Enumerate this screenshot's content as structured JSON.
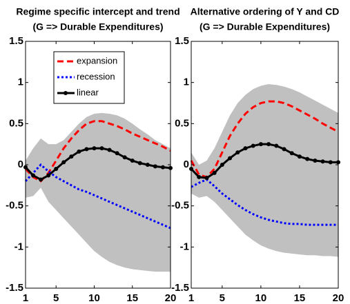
{
  "chart_data": [
    {
      "type": "line",
      "title": "Regime specific intercept and trend",
      "subtitle": "(G => Durable Expenditures)",
      "x": [
        1,
        2,
        3,
        4,
        5,
        6,
        7,
        8,
        9,
        10,
        11,
        12,
        13,
        14,
        15,
        16,
        17,
        18,
        19,
        20
      ],
      "xlim": [
        1,
        20
      ],
      "xticks": [
        1,
        5,
        10,
        15,
        20
      ],
      "ylim": [
        -1.5,
        1.5
      ],
      "yticks": [
        -1.5,
        -1,
        -0.5,
        0,
        0.5,
        1,
        1.5
      ],
      "legend": "upper center",
      "band": {
        "color": "#c0c0c0",
        "upper": [
          0.05,
          0.2,
          0.32,
          0.25,
          0.25,
          0.3,
          0.4,
          0.5,
          0.58,
          0.62,
          0.63,
          0.62,
          0.6,
          0.56,
          0.5,
          0.43,
          0.37,
          0.3,
          0.25,
          0.2
        ],
        "lower": [
          -0.4,
          -0.38,
          -0.28,
          -0.45,
          -0.55,
          -0.65,
          -0.75,
          -0.85,
          -0.95,
          -1.05,
          -1.12,
          -1.18,
          -1.22,
          -1.25,
          -1.27,
          -1.28,
          -1.29,
          -1.3,
          -1.3,
          -1.3
        ]
      },
      "series": [
        {
          "name": "expansion",
          "color": "#ff0000",
          "style": "dashed",
          "marker": false,
          "values": [
            -0.05,
            -0.15,
            -0.2,
            -0.1,
            0.05,
            0.2,
            0.32,
            0.42,
            0.5,
            0.53,
            0.53,
            0.5,
            0.47,
            0.43,
            0.38,
            0.34,
            0.3,
            0.26,
            0.22,
            0.17
          ]
        },
        {
          "name": "recession",
          "color": "#0000ff",
          "style": "dotted",
          "marker": false,
          "values": [
            -0.2,
            -0.1,
            0.0,
            -0.08,
            -0.15,
            -0.2,
            -0.25,
            -0.3,
            -0.33,
            -0.37,
            -0.41,
            -0.45,
            -0.49,
            -0.53,
            -0.57,
            -0.61,
            -0.65,
            -0.69,
            -0.73,
            -0.77
          ]
        },
        {
          "name": "linear",
          "color": "#000000",
          "style": "solid",
          "marker": true,
          "values": [
            -0.03,
            -0.13,
            -0.18,
            -0.13,
            -0.05,
            0.03,
            0.1,
            0.16,
            0.19,
            0.2,
            0.2,
            0.18,
            0.14,
            0.09,
            0.05,
            0.02,
            0.0,
            -0.02,
            -0.03,
            -0.04
          ]
        }
      ]
    },
    {
      "type": "line",
      "title": "Alternative ordering of Y and CD",
      "subtitle": "(G => Durable Expenditures)",
      "x": [
        1,
        2,
        3,
        4,
        5,
        6,
        7,
        8,
        9,
        10,
        11,
        12,
        13,
        14,
        15,
        16,
        17,
        18,
        19,
        20
      ],
      "xlim": [
        1,
        20
      ],
      "xticks": [
        1,
        5,
        10,
        15,
        20
      ],
      "ylim": [
        -1.5,
        1.5
      ],
      "yticks": [
        -1.5,
        -1,
        -0.5,
        0,
        0.5,
        1,
        1.5
      ],
      "band": {
        "color": "#c0c0c0",
        "upper": [
          0.15,
          0.0,
          0.05,
          0.2,
          0.4,
          0.6,
          0.75,
          0.85,
          0.92,
          0.96,
          0.98,
          0.97,
          0.95,
          0.92,
          0.88,
          0.83,
          0.78,
          0.73,
          0.68,
          0.63
        ],
        "lower": [
          -0.35,
          -0.4,
          -0.38,
          -0.45,
          -0.55,
          -0.65,
          -0.75,
          -0.85,
          -0.92,
          -0.98,
          -1.02,
          -1.05,
          -1.07,
          -1.08,
          -1.09,
          -1.1,
          -1.1,
          -1.11,
          -1.11,
          -1.12
        ]
      },
      "series": [
        {
          "name": "expansion",
          "color": "#ff0000",
          "style": "dashed",
          "marker": false,
          "values": [
            0.05,
            -0.12,
            -0.15,
            -0.05,
            0.15,
            0.35,
            0.5,
            0.62,
            0.7,
            0.75,
            0.77,
            0.77,
            0.75,
            0.71,
            0.66,
            0.61,
            0.56,
            0.5,
            0.45,
            0.4
          ]
        },
        {
          "name": "recession",
          "color": "#0000ff",
          "style": "dotted",
          "marker": false,
          "values": [
            -0.27,
            -0.22,
            -0.18,
            -0.26,
            -0.35,
            -0.42,
            -0.49,
            -0.55,
            -0.6,
            -0.64,
            -0.67,
            -0.69,
            -0.71,
            -0.72,
            -0.72,
            -0.73,
            -0.73,
            -0.73,
            -0.73,
            -0.73
          ]
        },
        {
          "name": "linear",
          "color": "#000000",
          "style": "solid",
          "marker": true,
          "values": [
            -0.05,
            -0.15,
            -0.16,
            -0.1,
            0.0,
            0.08,
            0.15,
            0.2,
            0.23,
            0.25,
            0.25,
            0.23,
            0.19,
            0.14,
            0.1,
            0.07,
            0.05,
            0.04,
            0.03,
            0.03
          ]
        }
      ]
    }
  ]
}
